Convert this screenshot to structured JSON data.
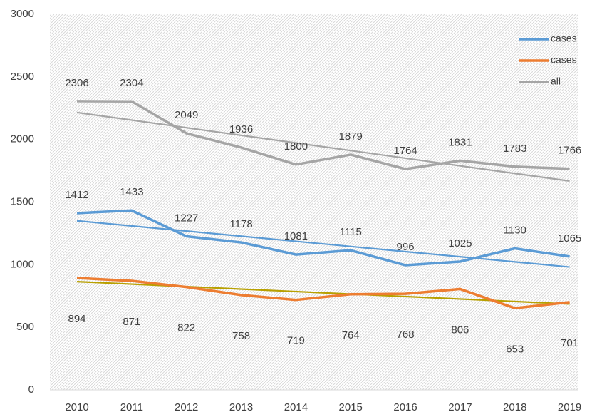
{
  "chart_data": {
    "type": "line",
    "categories": [
      "2010",
      "2011",
      "2012",
      "2013",
      "2014",
      "2015",
      "2016",
      "2017",
      "2018",
      "2019"
    ],
    "series": [
      {
        "name": "cases",
        "color": "#5b9bd5",
        "trendline_color": "#5b9bd5",
        "label_position": "above",
        "values": [
          1412,
          1433,
          1227,
          1178,
          1081,
          1115,
          996,
          1025,
          1130,
          1065
        ]
      },
      {
        "name": "cases",
        "color": "#ed7d31",
        "trendline_color": "#b8a000",
        "label_position": "below",
        "values": [
          894,
          871,
          822,
          758,
          719,
          764,
          768,
          806,
          653,
          701
        ]
      },
      {
        "name": "all",
        "color": "#a5a5a5",
        "trendline_color": "#a5a5a5",
        "label_position": "above",
        "values": [
          2306,
          2304,
          2049,
          1936,
          1800,
          1879,
          1764,
          1831,
          1783,
          1766
        ]
      }
    ],
    "ylim": [
      0,
      3000
    ],
    "yticks": [
      0,
      500,
      1000,
      1500,
      2000,
      2500,
      3000
    ],
    "legend": "top-right"
  }
}
